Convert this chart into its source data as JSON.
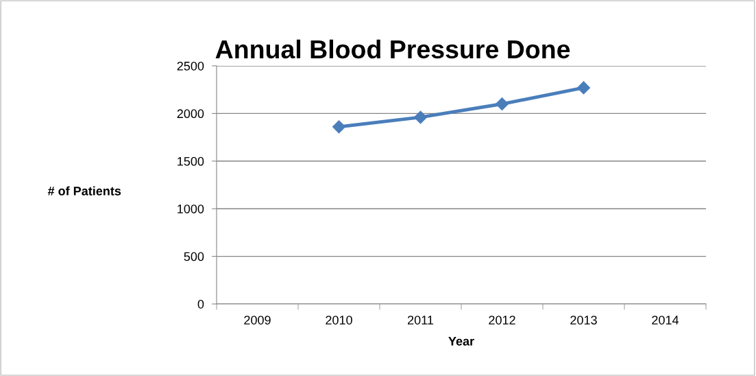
{
  "chart_data": {
    "type": "line",
    "title": "Annual Blood Pressure Done",
    "xlabel": "Year",
    "ylabel": "# of Patients",
    "categories": [
      "2009",
      "2010",
      "2011",
      "2012",
      "2013",
      "2014"
    ],
    "series": [
      {
        "color": "#4a7ebb",
        "values": [
          null,
          1860,
          1960,
          2100,
          2270,
          null
        ]
      }
    ],
    "ylim": [
      0,
      2500
    ],
    "yticks": [
      0,
      500,
      1000,
      1500,
      2000,
      2500
    ],
    "grid": "y",
    "legend": false,
    "marker": "diamond",
    "line_style": "solid"
  }
}
